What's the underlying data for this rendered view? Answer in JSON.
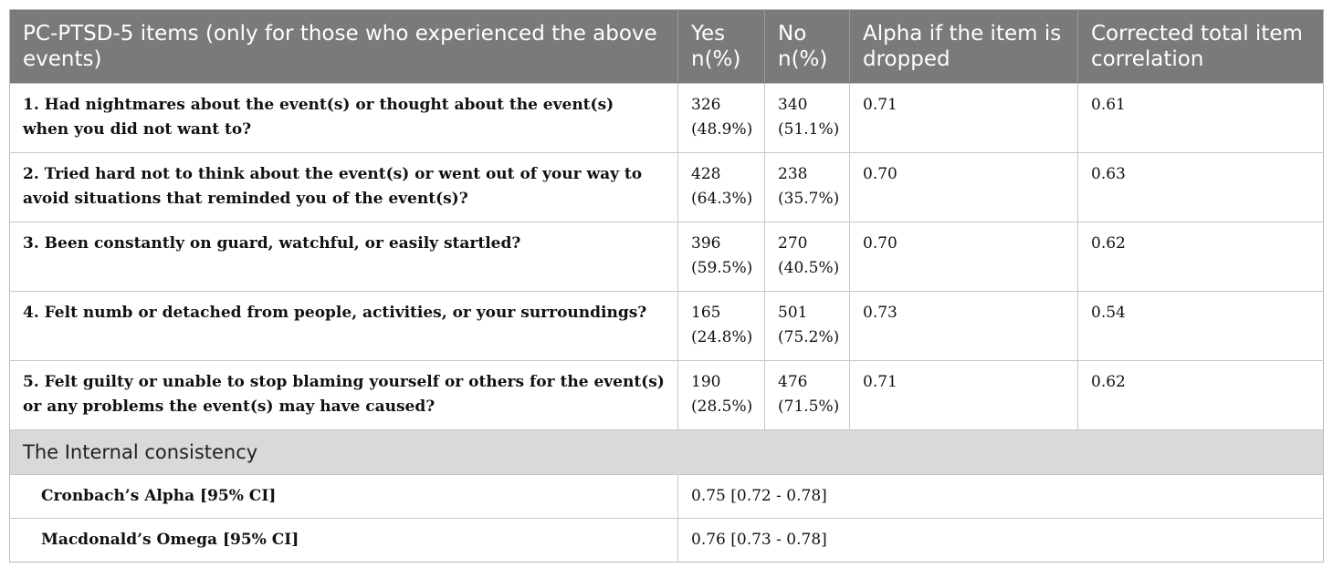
{
  "headers": [
    "PC-PTSD-5 items (only for those who experienced the above events)",
    "Yes n(%)",
    "No n(%)",
    "Alpha if the item is dropped",
    "Corrected total item correlation"
  ],
  "rows": [
    {
      "item": "1. Had nightmares about the event(s) or thought about the event(s) when you did not want to?",
      "yes": "326 (48.9%)",
      "no": "340 (51.1%)",
      "alpha": "0.71",
      "corr": "0.61"
    },
    {
      "item": "2. Tried hard not to think about the event(s) or went out of your way to avoid situations that reminded you of the event(s)?",
      "yes": "428 (64.3%)",
      "no": "238 (35.7%)",
      "alpha": "0.70",
      "corr": "0.63"
    },
    {
      "item": "3. Been constantly on guard, watchful, or easily startled?",
      "yes": "396 (59.5%)",
      "no": "270 (40.5%)",
      "alpha": "0.70",
      "corr": "0.62"
    },
    {
      "item": "4. Felt numb or detached from people, activities, or your surroundings?",
      "yes": "165 (24.8%)",
      "no": "501 (75.2%)",
      "alpha": "0.73",
      "corr": "0.54"
    },
    {
      "item": "5. Felt guilty or unable to stop blaming yourself or others for the event(s) or any problems the event(s) may have caused?",
      "yes": "190 (28.5%)",
      "no": "476 (71.5%)",
      "alpha": "0.71",
      "corr": "0.62"
    }
  ],
  "section_title": "The Internal consistency",
  "stats": [
    {
      "label": "Cronbach’s Alpha [95% CI]",
      "value": "0.75 [0.72 - 0.78]"
    },
    {
      "label": "Macdonald’s Omega [95% CI]",
      "value": "0.76 [0.73 - 0.78]"
    }
  ],
  "colors": {
    "header_bg": "#7a7a7a",
    "header_text": "#ffffff",
    "section_bg": "#d9d9d9",
    "border": "#c8c8c8"
  }
}
